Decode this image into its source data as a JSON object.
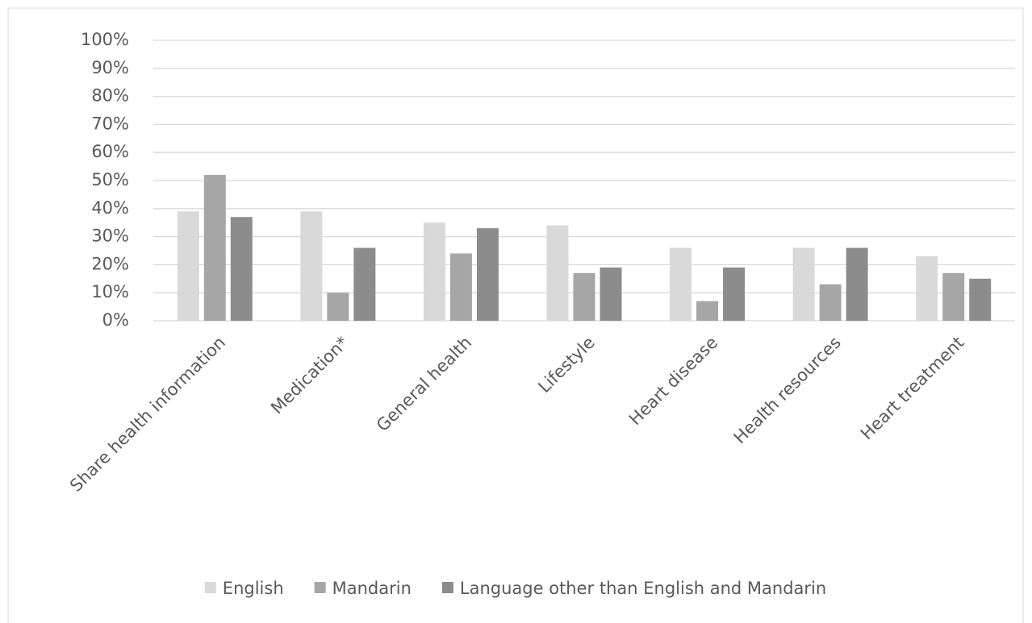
{
  "chart_data": {
    "type": "bar",
    "categories": [
      "Share health information",
      "Medication*",
      "General health",
      "Lifestyle",
      "Heart disease",
      "Health resources",
      "Heart treatment"
    ],
    "series": [
      {
        "name": "English",
        "color": "#d9d9d9",
        "values": [
          39,
          39,
          35,
          34,
          26,
          26,
          23
        ]
      },
      {
        "name": "Mandarin",
        "color": "#a6a6a6",
        "values": [
          52,
          10,
          24,
          17,
          7,
          13,
          17
        ]
      },
      {
        "name": "Language other than English and Mandarin",
        "color": "#8c8c8c",
        "values": [
          37,
          26,
          33,
          19,
          19,
          26,
          15
        ]
      }
    ],
    "ylim": [
      0,
      100
    ],
    "yticks": [
      {
        "value": 0,
        "label": "0%"
      },
      {
        "value": 10,
        "label": "10%"
      },
      {
        "value": 20,
        "label": "20%"
      },
      {
        "value": 30,
        "label": "30%"
      },
      {
        "value": 40,
        "label": "40%"
      },
      {
        "value": 50,
        "label": "50%"
      },
      {
        "value": 60,
        "label": "60%"
      },
      {
        "value": 70,
        "label": "70%"
      },
      {
        "value": 80,
        "label": "80%"
      },
      {
        "value": 90,
        "label": "90%"
      },
      {
        "value": 100,
        "label": "100%"
      }
    ],
    "grid": true,
    "legend": "bottom"
  }
}
